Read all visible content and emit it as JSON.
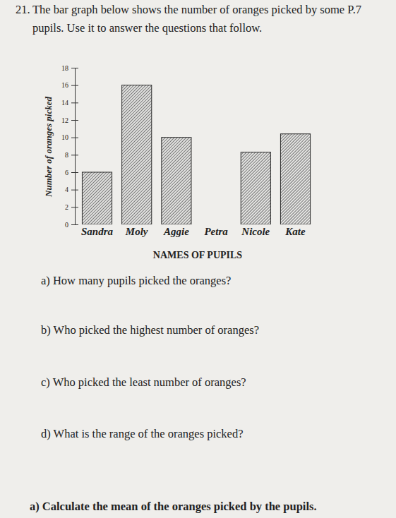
{
  "header": {
    "number": "21.",
    "lines": [
      "The bar graph below shows the number of oranges picked by some P.7",
      "pupils. Use it to answer the questions that follow."
    ]
  },
  "chart_data": {
    "type": "bar",
    "categories": [
      "Sandra",
      "Moly",
      "Aggie",
      "Petra",
      "Nicole",
      "Kate"
    ],
    "values": [
      6,
      16,
      10,
      0,
      8.3,
      10.4
    ],
    "color": "#5a5a5a",
    "ylim": [
      0,
      18
    ],
    "yticks": [
      0,
      2,
      4,
      6,
      8,
      10,
      12,
      14,
      16,
      18
    ],
    "grid": false,
    "x_label": "NAMES OF PUPILS",
    "y_label": "Number of oranges picked"
  },
  "questions": [
    "a) How many pupils picked the oranges?",
    "b) Who picked the highest number of oranges?",
    "c) Who picked the least number of oranges?",
    "d) What is the range of the oranges picked?",
    "a) Calculate the mean of the oranges picked by the pupils."
  ]
}
